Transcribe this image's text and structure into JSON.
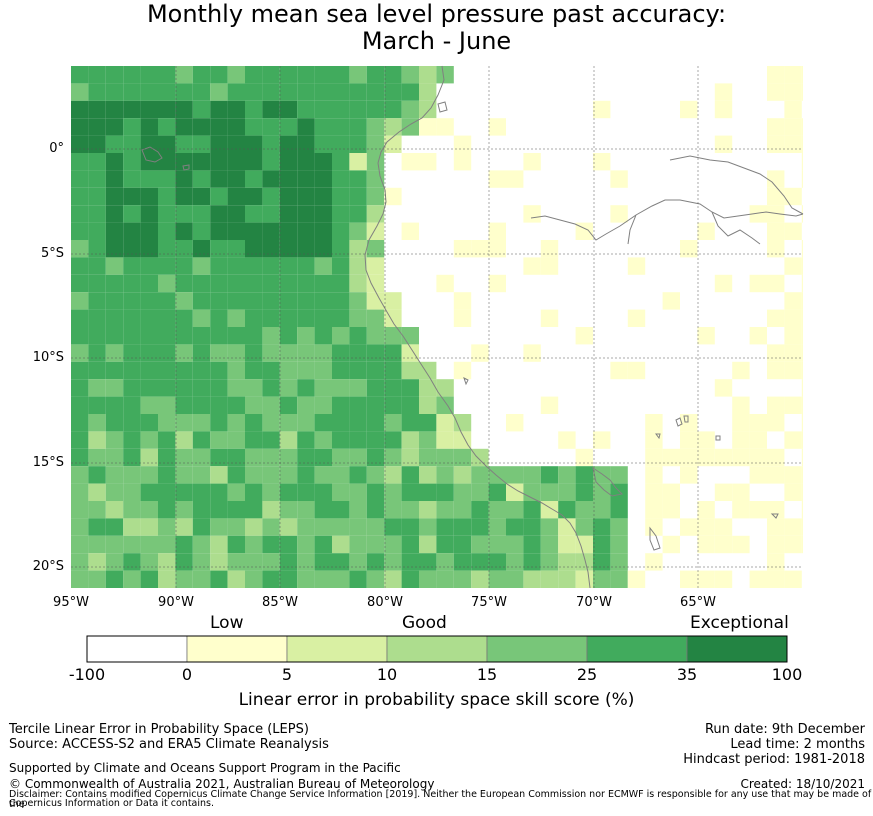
{
  "title": {
    "line1": "Monthly mean sea level pressure past accuracy:",
    "line2": "March - June"
  },
  "map": {
    "lat_labels": [
      "0°",
      "5°S",
      "10°S",
      "15°S",
      "20°S"
    ],
    "lon_labels": [
      "95°W",
      "90°W",
      "85°W",
      "80°W",
      "75°W",
      "70°W",
      "65°W"
    ],
    "land_outline_color": "#808080",
    "grid_color": "#555555"
  },
  "colorbar": {
    "categories": [
      "Low",
      "Good",
      "Exceptional"
    ],
    "ticks": [
      "-100",
      "0",
      "5",
      "10",
      "15",
      "25",
      "35",
      "100"
    ],
    "colors": [
      "#ffffff",
      "#ffffcc",
      "#d9f0a3",
      "#addd8e",
      "#78c679",
      "#41ab5d",
      "#238443"
    ],
    "label": "Linear error in probability space skill score (%)"
  },
  "footer": {
    "method": "Tercile Linear Error in Probability Space (LEPS)",
    "source": "Source: ACCESS-S2 and ERA5 Climate Reanalysis",
    "support": "Supported by Climate and Oceans Support Program in the Pacific",
    "copyright": "© Commonwealth of Australia 2021, Australian Bureau of Meteorology",
    "disclaimer1": "Disclaimer: Contains modified Copernicus Climate Change Service Information [2019]. Neither the European Commission nor ECMWF is responsible for any use that may be made of the",
    "disclaimer2": "Copernicus Information or Data it contains.",
    "run_date": "Run date: 9th December",
    "lead_time": "Lead time: 2 months",
    "hindcast": "Hindcast period: 1981-2018",
    "created": "Created: 18/10/2021"
  }
}
